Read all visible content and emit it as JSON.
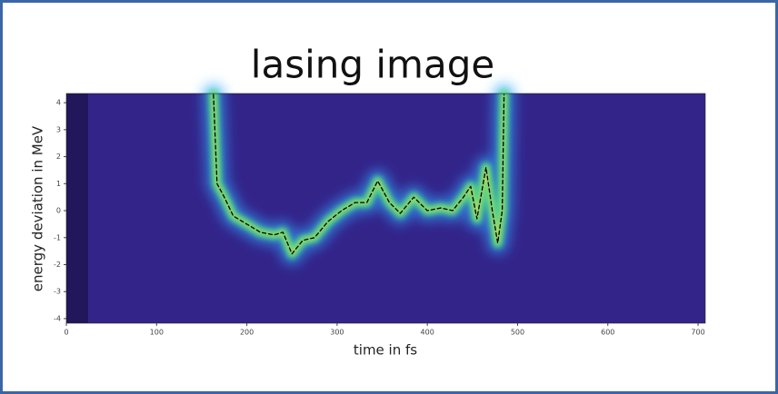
{
  "chart_data": {
    "type": "line",
    "title": "lasing image",
    "x_label": "time in fs",
    "y_label": "energy deviation in MeV",
    "x": [
      163,
      167,
      175,
      185,
      200,
      215,
      230,
      240,
      250,
      262,
      275,
      290,
      305,
      320,
      333,
      345,
      358,
      370,
      385,
      400,
      415,
      428,
      440,
      448,
      455,
      465,
      472,
      478,
      483,
      485
    ],
    "series": [
      {
        "color": "#000000",
        "values": [
          4.3,
          1.0,
          0.5,
          -0.2,
          -0.5,
          -0.8,
          -0.9,
          -0.8,
          -1.6,
          -1.1,
          -1.0,
          -0.4,
          0.0,
          0.3,
          0.3,
          1.1,
          0.3,
          -0.1,
          0.5,
          0.0,
          0.1,
          0.0,
          0.5,
          0.9,
          -0.3,
          1.6,
          0.0,
          -1.2,
          0.0,
          4.3
        ]
      }
    ],
    "xlim": [
      0,
      708
    ],
    "ylim": [
      -4.17,
      4.34
    ],
    "xticks": [
      0,
      100,
      200,
      300,
      400,
      500,
      600,
      700
    ],
    "yticks": [
      -4,
      -3,
      -2,
      -1,
      0,
      1,
      2,
      3,
      4
    ],
    "background": "#33248a"
  }
}
